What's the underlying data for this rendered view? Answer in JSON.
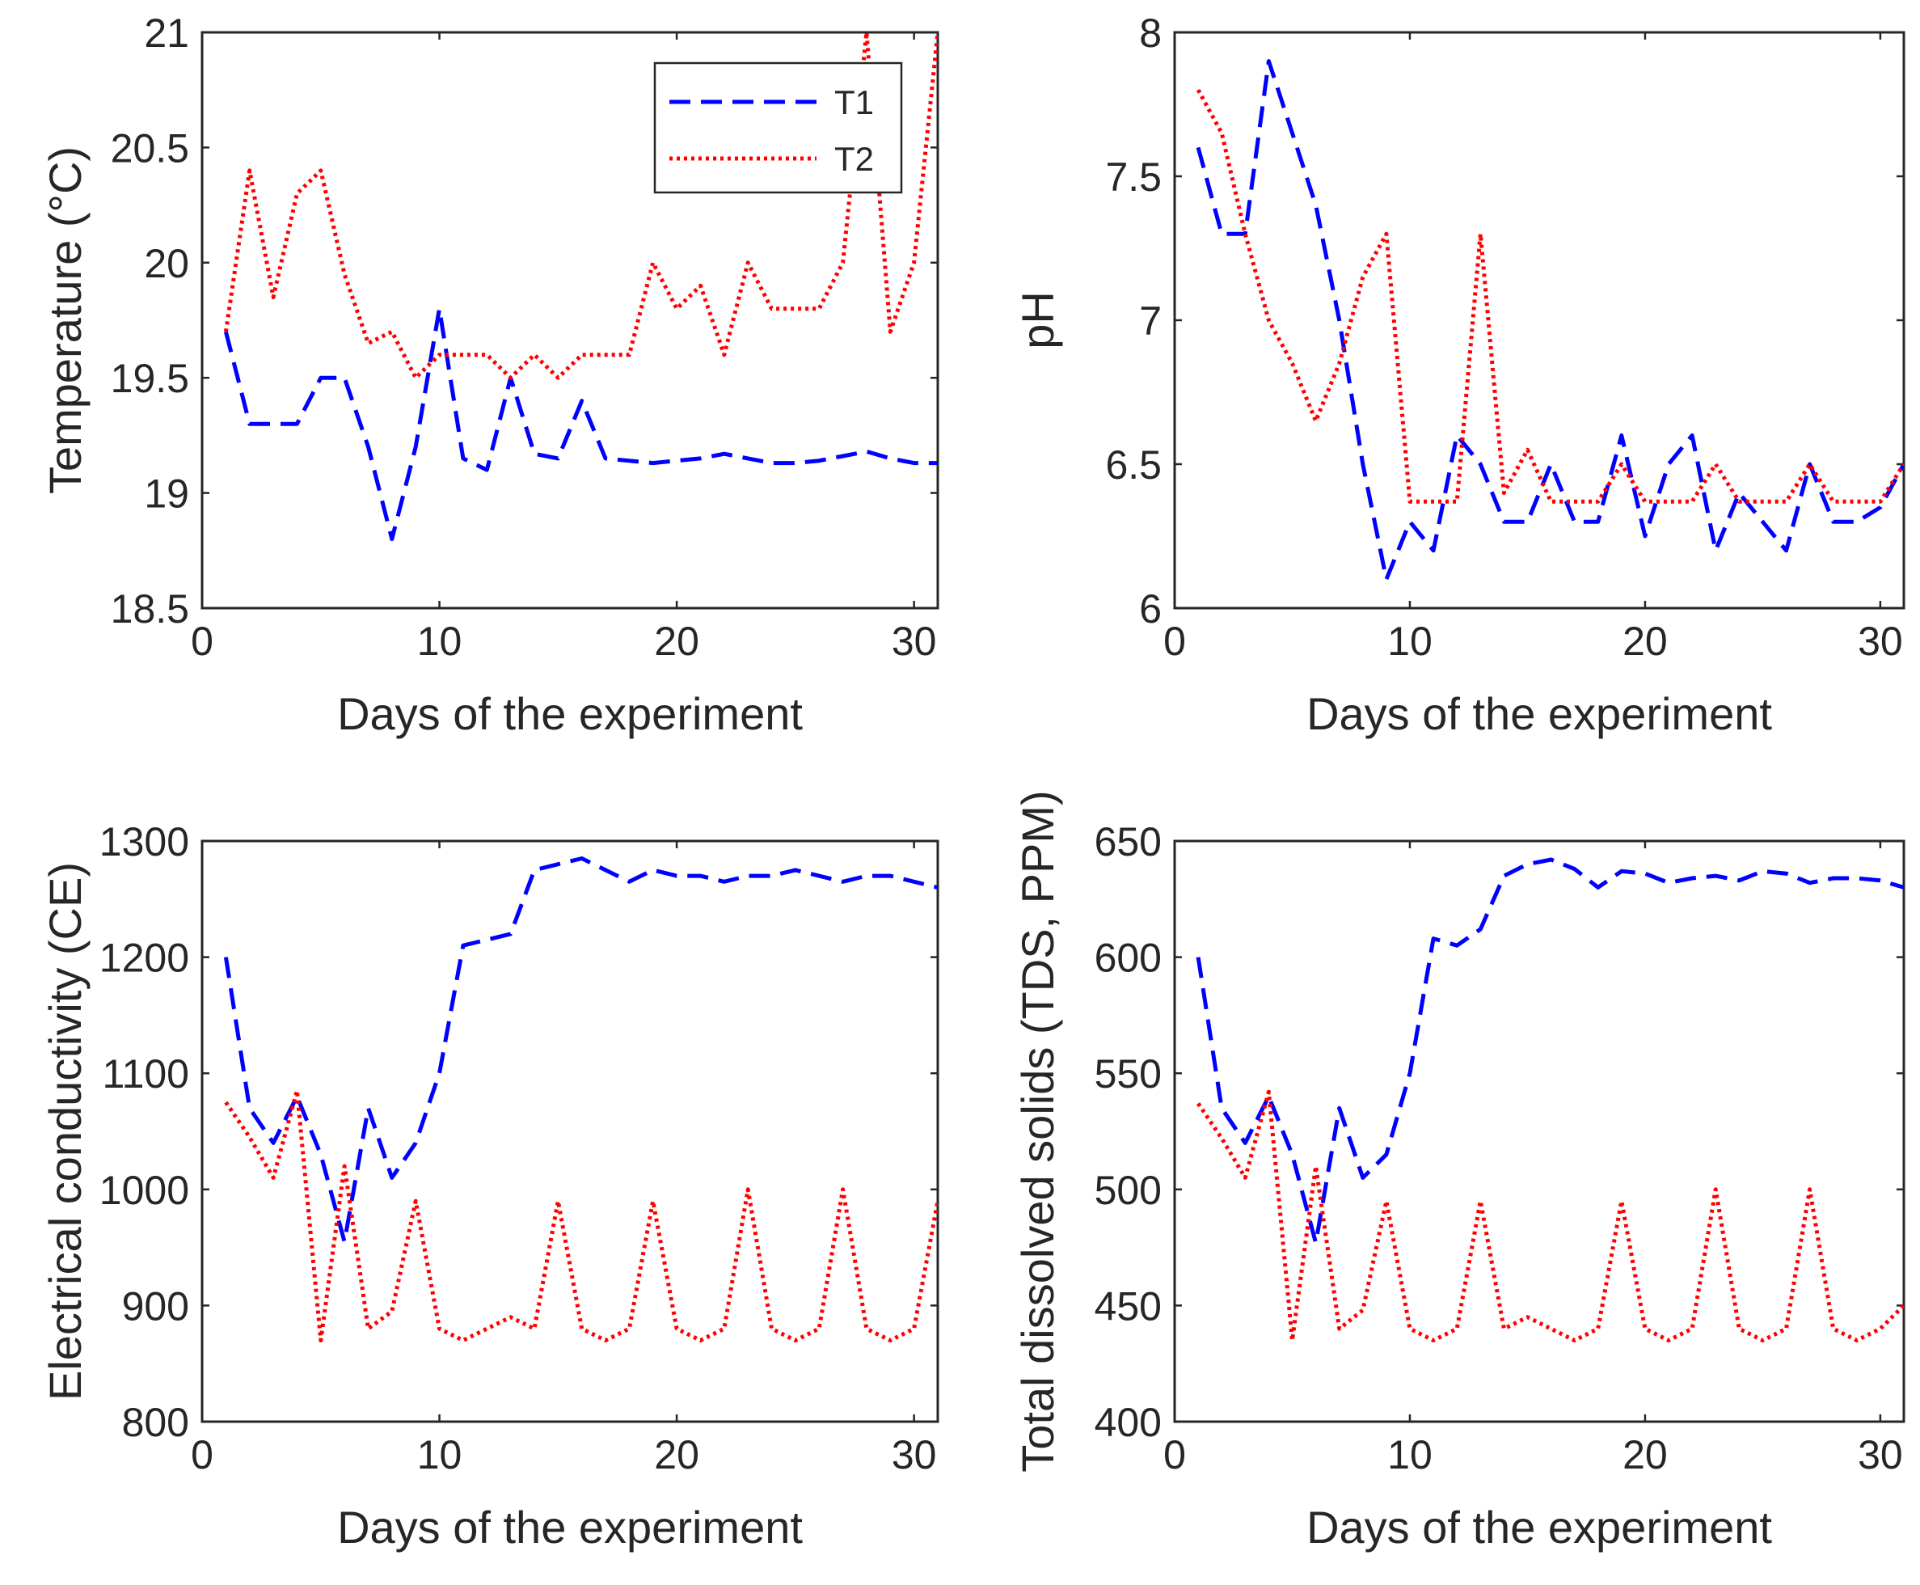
{
  "chart_data": [
    {
      "type": "line",
      "xlabel": "Days of the experiment",
      "ylabel": "Temperature (°C)",
      "xlim": [
        0,
        31
      ],
      "ylim": [
        18.5,
        21
      ],
      "xticks": [
        0,
        10,
        20,
        30
      ],
      "yticks": [
        18.5,
        19,
        19.5,
        20,
        20.5,
        21
      ],
      "ytick_labels": [
        "18.5",
        "19",
        "19.5",
        "20",
        "20.5",
        "21"
      ],
      "legend": {
        "placement": "top-right",
        "entries": [
          "T1",
          "T2"
        ]
      },
      "series": [
        {
          "name": "T1",
          "color": "#0000ff",
          "style": "dashed",
          "x": [
            1,
            2,
            3,
            4,
            5,
            6,
            7,
            8,
            9,
            10,
            11,
            12,
            13,
            14,
            15,
            16,
            17,
            18,
            19,
            20,
            21,
            22,
            23,
            24,
            25,
            26,
            27,
            28,
            29,
            30,
            31
          ],
          "y": [
            19.7,
            19.3,
            19.3,
            19.3,
            19.5,
            19.5,
            19.2,
            18.8,
            19.2,
            19.8,
            19.15,
            19.1,
            19.5,
            19.17,
            19.15,
            19.4,
            19.15,
            19.14,
            19.13,
            19.14,
            19.15,
            19.17,
            19.15,
            19.13,
            19.13,
            19.14,
            19.16,
            19.18,
            19.15,
            19.13,
            19.13
          ]
        },
        {
          "name": "T2",
          "color": "#ff0000",
          "style": "dotted",
          "x": [
            1,
            2,
            3,
            4,
            5,
            6,
            7,
            8,
            9,
            10,
            11,
            12,
            13,
            14,
            15,
            16,
            17,
            18,
            19,
            20,
            21,
            22,
            23,
            24,
            25,
            26,
            27,
            28,
            29,
            30,
            31
          ],
          "y": [
            19.7,
            20.4,
            19.85,
            20.3,
            20.4,
            19.95,
            19.65,
            19.7,
            19.5,
            19.6,
            19.6,
            19.6,
            19.5,
            19.6,
            19.5,
            19.6,
            19.6,
            19.6,
            20.0,
            19.8,
            19.9,
            19.6,
            20.0,
            19.8,
            19.8,
            19.8,
            20.0,
            21.0,
            19.7,
            20.0,
            21.0
          ]
        }
      ]
    },
    {
      "type": "line",
      "xlabel": "Days of the experiment",
      "ylabel": "pH",
      "xlim": [
        0,
        31
      ],
      "ylim": [
        6,
        8
      ],
      "xticks": [
        0,
        10,
        20,
        30
      ],
      "yticks": [
        6,
        6.5,
        7,
        7.5,
        8
      ],
      "ytick_labels": [
        "6",
        "6.5",
        "7",
        "7.5",
        "8"
      ],
      "series": [
        {
          "name": "T1",
          "color": "#0000ff",
          "style": "dashed",
          "x": [
            1,
            2,
            3,
            4,
            5,
            6,
            7,
            8,
            9,
            10,
            11,
            12,
            13,
            14,
            15,
            16,
            17,
            18,
            19,
            20,
            21,
            22,
            23,
            24,
            25,
            26,
            27,
            28,
            29,
            30,
            31
          ],
          "y": [
            7.6,
            7.3,
            7.3,
            7.9,
            7.65,
            7.4,
            7.0,
            6.5,
            6.1,
            6.3,
            6.2,
            6.6,
            6.5,
            6.3,
            6.3,
            6.5,
            6.3,
            6.3,
            6.6,
            6.25,
            6.5,
            6.6,
            6.2,
            6.4,
            6.3,
            6.2,
            6.5,
            6.3,
            6.3,
            6.35,
            6.5
          ]
        },
        {
          "name": "T2",
          "color": "#ff0000",
          "style": "dotted",
          "x": [
            1,
            2,
            3,
            4,
            5,
            6,
            7,
            8,
            9,
            10,
            11,
            12,
            13,
            14,
            15,
            16,
            17,
            18,
            19,
            20,
            21,
            22,
            23,
            24,
            25,
            26,
            27,
            28,
            29,
            30,
            31
          ],
          "y": [
            7.8,
            7.65,
            7.3,
            7.0,
            6.85,
            6.65,
            6.85,
            7.15,
            7.3,
            6.37,
            6.37,
            6.37,
            7.3,
            6.4,
            6.55,
            6.37,
            6.37,
            6.37,
            6.5,
            6.37,
            6.37,
            6.37,
            6.5,
            6.37,
            6.37,
            6.37,
            6.5,
            6.37,
            6.37,
            6.37,
            6.5
          ]
        }
      ]
    },
    {
      "type": "line",
      "xlabel": "Days of the experiment",
      "ylabel": "Electrical conductivity (CE)",
      "xlim": [
        0,
        31
      ],
      "ylim": [
        800,
        1300
      ],
      "xticks": [
        0,
        10,
        20,
        30
      ],
      "yticks": [
        800,
        900,
        1000,
        1100,
        1200,
        1300
      ],
      "ytick_labels": [
        "800",
        "900",
        "1000",
        "1100",
        "1200",
        "1300"
      ],
      "series": [
        {
          "name": "T1",
          "color": "#0000ff",
          "style": "dashed",
          "x": [
            1,
            2,
            3,
            4,
            5,
            6,
            7,
            8,
            9,
            10,
            11,
            12,
            13,
            14,
            15,
            16,
            17,
            18,
            19,
            20,
            21,
            22,
            23,
            24,
            25,
            26,
            27,
            28,
            29,
            30,
            31
          ],
          "y": [
            1200,
            1070,
            1040,
            1080,
            1030,
            955,
            1070,
            1010,
            1040,
            1100,
            1210,
            1215,
            1220,
            1275,
            1280,
            1285,
            1275,
            1265,
            1275,
            1270,
            1270,
            1265,
            1270,
            1270,
            1275,
            1270,
            1265,
            1270,
            1270,
            1265,
            1260
          ]
        },
        {
          "name": "T2",
          "color": "#ff0000",
          "style": "dotted",
          "x": [
            1,
            2,
            3,
            4,
            5,
            6,
            7,
            8,
            9,
            10,
            11,
            12,
            13,
            14,
            15,
            16,
            17,
            18,
            19,
            20,
            21,
            22,
            23,
            24,
            25,
            26,
            27,
            28,
            29,
            30,
            31
          ],
          "y": [
            1075,
            1045,
            1010,
            1085,
            870,
            1020,
            880,
            895,
            990,
            880,
            870,
            880,
            890,
            880,
            990,
            880,
            870,
            880,
            990,
            880,
            870,
            880,
            1000,
            880,
            870,
            880,
            1000,
            880,
            870,
            880,
            990
          ]
        }
      ]
    },
    {
      "type": "line",
      "xlabel": "Days of the experiment",
      "ylabel": "Total dissolved solids (TDS, PPM)",
      "xlim": [
        0,
        31
      ],
      "ylim": [
        400,
        650
      ],
      "xticks": [
        0,
        10,
        20,
        30
      ],
      "yticks": [
        400,
        450,
        500,
        550,
        600,
        650
      ],
      "ytick_labels": [
        "400",
        "450",
        "500",
        "550",
        "600",
        "650"
      ],
      "series": [
        {
          "name": "T1",
          "color": "#0000ff",
          "style": "dashed",
          "x": [
            1,
            2,
            3,
            4,
            5,
            6,
            7,
            8,
            9,
            10,
            11,
            12,
            13,
            14,
            15,
            16,
            17,
            18,
            19,
            20,
            21,
            22,
            23,
            24,
            25,
            26,
            27,
            28,
            29,
            30,
            31
          ],
          "y": [
            600,
            535,
            520,
            540,
            515,
            477,
            535,
            505,
            515,
            550,
            608,
            605,
            612,
            635,
            640,
            642,
            638,
            630,
            637,
            636,
            632,
            634,
            635,
            633,
            637,
            636,
            632,
            634,
            634,
            633,
            630
          ]
        },
        {
          "name": "T2",
          "color": "#ff0000",
          "style": "dotted",
          "x": [
            1,
            2,
            3,
            4,
            5,
            6,
            7,
            8,
            9,
            10,
            11,
            12,
            13,
            14,
            15,
            16,
            17,
            18,
            19,
            20,
            21,
            22,
            23,
            24,
            25,
            26,
            27,
            28,
            29,
            30,
            31
          ],
          "y": [
            537,
            522,
            505,
            542,
            435,
            510,
            440,
            448,
            495,
            440,
            435,
            440,
            495,
            440,
            445,
            440,
            435,
            440,
            495,
            440,
            435,
            440,
            500,
            440,
            435,
            440,
            500,
            440,
            435,
            440,
            450
          ]
        }
      ]
    }
  ]
}
